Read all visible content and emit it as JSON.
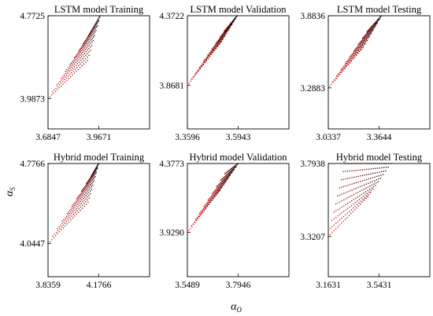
{
  "xlabel": "α",
  "xlabel_sub": "O",
  "ylabel": "α",
  "ylabel_sub": "S",
  "marker_color_start": "#ff1a1a",
  "marker_color_end": "#000000",
  "chart_data": [
    {
      "type": "scatter",
      "title": "LSTM model  Training",
      "xticks": [
        "3.6847",
        "3.9671"
      ],
      "yticks": [
        "4.7725",
        "3.9873"
      ],
      "xlim": [
        3.6847,
        4.2495
      ],
      "ylim": [
        3.7,
        4.7725
      ],
      "bottom_start": [
        3.6847,
        3.9873
      ],
      "knee": [
        3.905,
        4.35
      ],
      "top_left": [
        3.905,
        4.57
      ],
      "top_right": [
        3.975,
        4.7725
      ]
    },
    {
      "type": "scatter",
      "title": "LSTM model  Validation",
      "xticks": [
        "3.3596",
        "3.5943"
      ],
      "yticks": [
        "4.3722",
        "3.8681"
      ],
      "xlim": [
        3.3596,
        3.829
      ],
      "ylim": [
        3.55,
        4.3722
      ],
      "bottom_start": [
        3.3596,
        3.8681
      ],
      "knee": [
        3.515,
        4.18
      ],
      "top_left": [
        3.53,
        4.26
      ],
      "top_right": [
        3.59,
        4.3722
      ]
    },
    {
      "type": "scatter",
      "title": "LSTM model  Testing",
      "xticks": [
        "3.0337",
        "3.3644"
      ],
      "yticks": [
        "3.8836",
        "3.2883"
      ],
      "xlim": [
        3.0337,
        3.6951
      ],
      "ylim": [
        2.95,
        3.8836
      ],
      "bottom_start": [
        3.0337,
        3.2883
      ],
      "knee": [
        3.26,
        3.62
      ],
      "top_left": [
        3.285,
        3.75
      ],
      "top_right": [
        3.38,
        3.8836
      ]
    },
    {
      "type": "scatter",
      "title": "Hybrid model  Training",
      "xticks": [
        "3.8359",
        "4.1766"
      ],
      "yticks": [
        "4.7766",
        "4.0447"
      ],
      "xlim": [
        3.8359,
        4.5173
      ],
      "ylim": [
        3.74,
        4.7766
      ],
      "bottom_start": [
        3.8359,
        4.0447
      ],
      "knee": [
        4.105,
        4.42
      ],
      "top_left": [
        4.125,
        4.66
      ],
      "top_right": [
        4.176,
        4.7766
      ]
    },
    {
      "type": "scatter",
      "title": "Hybrid model  Validation",
      "xticks": [
        "3.5489",
        "3.7946"
      ],
      "yticks": [
        "4.3773",
        "3.9290"
      ],
      "xlim": [
        3.5489,
        4.0403
      ],
      "ylim": [
        3.64,
        4.3773
      ],
      "bottom_start": [
        3.5489,
        3.929
      ],
      "knee": [
        3.705,
        4.2
      ],
      "top_left": [
        3.73,
        4.31
      ],
      "top_right": [
        3.7946,
        4.3773
      ]
    },
    {
      "type": "scatter",
      "title": "Hybrid model  Testing",
      "xticks": [
        "3.1631",
        "3.5431"
      ],
      "yticks": [
        "3.7938",
        "3.3207"
      ],
      "xlim": [
        3.1631,
        3.9231
      ],
      "ylim": [
        3.06,
        3.7938
      ],
      "bottom_start": [
        3.1631,
        3.3207
      ],
      "knee": [
        3.46,
        3.58
      ],
      "top_left": [
        3.29,
        3.7938
      ],
      "top_right": [
        3.63,
        3.7938
      ]
    }
  ]
}
